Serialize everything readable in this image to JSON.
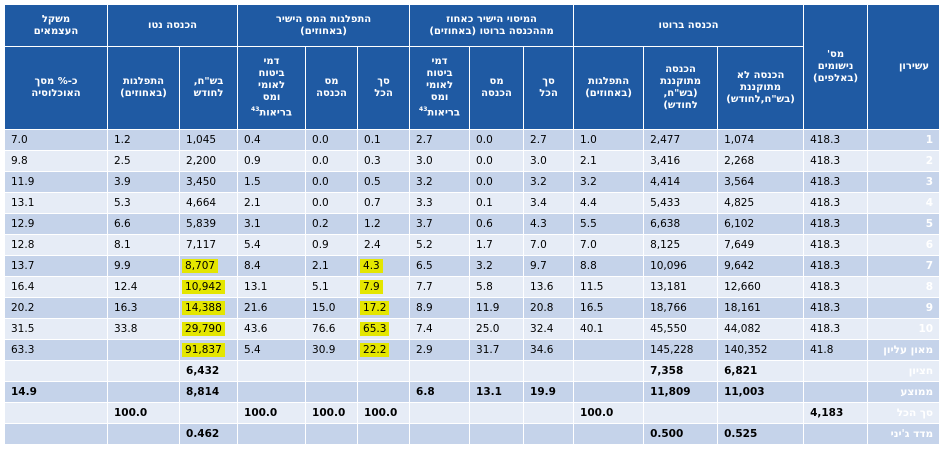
{
  "headers": {
    "decile": "עשירון",
    "households": "מס'\nנישומים\n(באלפים)",
    "gross_income": "הכנסה ברוטו",
    "direct_tax_share": "המיסוי הישיר כאחוז\nמההכנסה ברוטו (באחוזים)",
    "direct_tax_dist": "התפלגות המס הישיר\n(באחוזים)",
    "net_income": "הכנסה נטו",
    "self_employed": "משקל\nהעצמאים",
    "sub": {
      "gross_unadj": "הכנסה לא\nמתוקננת\n(בש\"ח,לחודש)",
      "gross_adj": "הכנסה\nמתוקננת\n(בש\"ח,\nלחודש)",
      "gross_dist": "התפלגות\n(באחוזים)",
      "share_total": "סך\nהכל",
      "share_income_tax": "מס\nהכנסה",
      "share_ni": "דמי\nביטוח\nלאומי\nומס\nבריאות",
      "share_ni_note": "43",
      "dist_total": "סך\nהכל",
      "dist_income_tax": "מס\nהכנסה",
      "dist_ni": "דמי\nביטוח\nלאומי\nומס\nבריאות",
      "dist_ni_note": "43",
      "net_nis": "בש\"ח,\nלחודש",
      "net_dist": "התפלגות\n(באחוזים)",
      "self_pct": "כ-% מסך\nהאוכלוסיה"
    }
  },
  "rows": [
    {
      "label": "1",
      "hh": "418.3",
      "g1": "1,074",
      "g2": "2,477",
      "g3": "1.0",
      "s1": "2.7",
      "s2": "0.0",
      "s3": "2.7",
      "d1": "0.1",
      "d2": "0.0",
      "d3": "0.4",
      "n1": "1,045",
      "n2": "1.2",
      "se": "7.0"
    },
    {
      "label": "2",
      "hh": "418.3",
      "g1": "2,268",
      "g2": "3,416",
      "g3": "2.1",
      "s1": "3.0",
      "s2": "0.0",
      "s3": "3.0",
      "d1": "0.3",
      "d2": "0.0",
      "d3": "0.9",
      "n1": "2,200",
      "n2": "2.5",
      "se": "9.8"
    },
    {
      "label": "3",
      "hh": "418.3",
      "g1": "3,564",
      "g2": "4,414",
      "g3": "3.2",
      "s1": "3.2",
      "s2": "0.0",
      "s3": "3.2",
      "d1": "0.5",
      "d2": "0.0",
      "d3": "1.5",
      "n1": "3,450",
      "n2": "3.9",
      "se": "11.9"
    },
    {
      "label": "4",
      "hh": "418.3",
      "g1": "4,825",
      "g2": "5,433",
      "g3": "4.4",
      "s1": "3.4",
      "s2": "0.1",
      "s3": "3.3",
      "d1": "0.7",
      "d2": "0.0",
      "d3": "2.1",
      "n1": "4,664",
      "n2": "5.3",
      "se": "13.1"
    },
    {
      "label": "5",
      "hh": "418.3",
      "g1": "6,102",
      "g2": "6,638",
      "g3": "5.5",
      "s1": "4.3",
      "s2": "0.6",
      "s3": "3.7",
      "d1": "1.2",
      "d2": "0.2",
      "d3": "3.1",
      "n1": "5,839",
      "n2": "6.6",
      "se": "12.9"
    },
    {
      "label": "6",
      "hh": "418.3",
      "g1": "7,649",
      "g2": "8,125",
      "g3": "7.0",
      "s1": "7.0",
      "s2": "1.7",
      "s3": "5.2",
      "d1": "2.4",
      "d2": "0.9",
      "d3": "5.4",
      "n1": "7,117",
      "n2": "8.1",
      "se": "12.8"
    },
    {
      "label": "7",
      "hh": "418.3",
      "g1": "9,642",
      "g2": "10,096",
      "g3": "8.8",
      "s1": "9.7",
      "s2": "3.2",
      "s3": "6.5",
      "d1": "4.3",
      "d2": "2.1",
      "d3": "8.4",
      "n1": "8,707",
      "n2": "9.9",
      "se": "13.7"
    },
    {
      "label": "8",
      "hh": "418.3",
      "g1": "12,660",
      "g2": "13,181",
      "g3": "11.5",
      "s1": "13.6",
      "s2": "5.8",
      "s3": "7.7",
      "d1": "7.9",
      "d2": "5.1",
      "d3": "13.1",
      "n1": "10,942",
      "n2": "12.4",
      "se": "16.4"
    },
    {
      "label": "9",
      "hh": "418.3",
      "g1": "18,161",
      "g2": "18,766",
      "g3": "16.5",
      "s1": "20.8",
      "s2": "11.9",
      "s3": "8.9",
      "d1": "17.2",
      "d2": "15.0",
      "d3": "21.6",
      "n1": "14,388",
      "n2": "16.3",
      "se": "20.2"
    },
    {
      "label": "10",
      "hh": "418.3",
      "g1": "44,082",
      "g2": "45,550",
      "g3": "40.1",
      "s1": "32.4",
      "s2": "25.0",
      "s3": "7.4",
      "d1": "65.3",
      "d2": "76.6",
      "d3": "43.6",
      "n1": "29,790",
      "n2": "33.8",
      "se": "31.5"
    },
    {
      "label": "מאון עליון",
      "hh": "41.8",
      "g1": "140,352",
      "g2": "145,228",
      "g3": "",
      "s1": "34.6",
      "s2": "31.7",
      "s3": "2.9",
      "d1": "22.2",
      "d2": "30.9",
      "d3": "5.4",
      "n1": "91,837",
      "n2": "",
      "se": "63.3"
    },
    {
      "label": "חציון",
      "hh": "",
      "g1": "6,821",
      "g2": "7,358",
      "g3": "",
      "s1": "",
      "s2": "",
      "s3": "",
      "d1": "",
      "d2": "",
      "d3": "",
      "n1": "6,432",
      "n2": "",
      "se": ""
    },
    {
      "label": "ממוצע",
      "hh": "",
      "g1": "11,003",
      "g2": "11,809",
      "g3": "",
      "s1": "19.9",
      "s2": "13.1",
      "s3": "6.8",
      "d1": "",
      "d2": "",
      "d3": "",
      "n1": "8,814",
      "n2": "",
      "se": "14.9"
    },
    {
      "label": "סך הכל",
      "hh": "4,183",
      "g1": "",
      "g2": "",
      "g3": "100.0",
      "s1": "",
      "s2": "",
      "s3": "",
      "d1": "100.0",
      "d2": "100.0",
      "d3": "100.0",
      "n1": "",
      "n2": "100.0",
      "se": ""
    },
    {
      "label": "מדד ג'יני",
      "hh": "",
      "g1": "0.525",
      "g2": "0.500",
      "g3": "",
      "s1": "",
      "s2": "",
      "s3": "",
      "d1": "",
      "d2": "",
      "d3": "",
      "n1": "0.462",
      "n2": "",
      "se": ""
    }
  ],
  "highlight_color": "#e4e600",
  "header_color": "#1f5aa3"
}
